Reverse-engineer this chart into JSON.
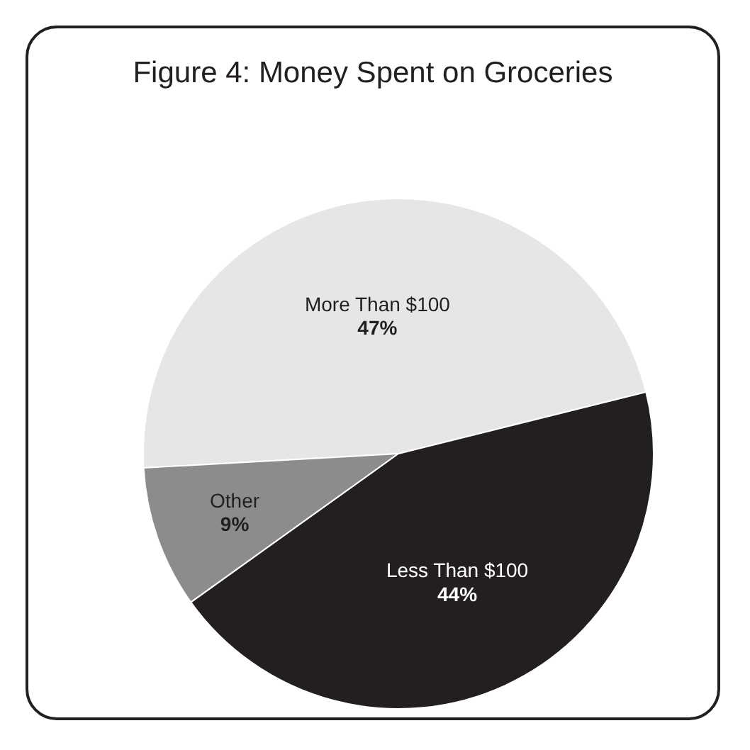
{
  "chart_data": {
    "type": "pie",
    "title": "Figure 4: Money Spent on Groceries",
    "categories": [
      "More Than $100",
      "Other",
      "Less Than $100"
    ],
    "values": [
      47,
      9,
      44
    ],
    "colors": [
      "#e6e6e6",
      "#8c8c8c",
      "#231f20"
    ],
    "value_labels": [
      "47%",
      "9%",
      "44%"
    ],
    "legend": false
  }
}
